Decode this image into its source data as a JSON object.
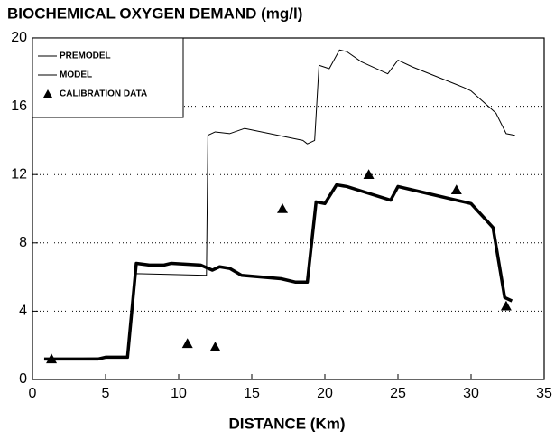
{
  "chart_data": {
    "type": "line",
    "title": "BIOCHEMICAL OXYGEN DEMAND  (mg/l)",
    "x_label": "DISTANCE  (Km)",
    "xlim": [
      0,
      35
    ],
    "xticks": [
      0,
      5,
      10,
      15,
      20,
      25,
      30,
      35
    ],
    "ylim": [
      0,
      20
    ],
    "yticks": [
      0,
      4,
      8,
      12,
      16,
      20
    ],
    "grid": true,
    "legend": "upper left",
    "series": [
      {
        "name": "PREMODEL",
        "color": "#000000",
        "width": 1,
        "mode": "line",
        "x": [
          0.8,
          6.5,
          7.1,
          11.9,
          12.0,
          12.5,
          13.5,
          14.5,
          18.5,
          18.8,
          19.3,
          19.6,
          20.3,
          21.0,
          21.5,
          22.5,
          24.3,
          25.0,
          26.0,
          29.5,
          30.0,
          31.7,
          32.4,
          33.0
        ],
        "values": [
          1.2,
          1.3,
          6.2,
          6.1,
          14.3,
          14.5,
          14.4,
          14.7,
          14.0,
          13.8,
          14.0,
          18.4,
          18.2,
          19.3,
          19.2,
          18.6,
          17.9,
          18.7,
          18.3,
          17.1,
          16.9,
          15.6,
          14.4,
          14.3
        ]
      },
      {
        "name": "MODEL",
        "color": "#000000",
        "width": 3.5,
        "mode": "line",
        "x": [
          0.8,
          4.5,
          5.0,
          6.5,
          7.1,
          8.0,
          9.0,
          9.5,
          11.5,
          12.3,
          12.8,
          13.5,
          14.3,
          17.0,
          18.0,
          18.8,
          19.4,
          20.0,
          20.8,
          21.5,
          23.0,
          24.5,
          25.0,
          27.0,
          28.5,
          29.5,
          30.0,
          31.5,
          32.3,
          32.8
        ],
        "values": [
          1.2,
          1.2,
          1.3,
          1.3,
          6.8,
          6.7,
          6.7,
          6.8,
          6.7,
          6.4,
          6.6,
          6.5,
          6.1,
          5.9,
          5.7,
          5.7,
          10.4,
          10.3,
          11.4,
          11.3,
          10.9,
          10.5,
          11.3,
          10.9,
          10.6,
          10.4,
          10.3,
          8.9,
          4.8,
          4.6
        ]
      },
      {
        "name": "CALIBRATION DATA",
        "color": "#000000",
        "mode": "markers",
        "x": [
          1.3,
          10.6,
          12.5,
          17.1,
          23.0,
          29.0,
          32.4
        ],
        "values": [
          1.2,
          2.1,
          1.9,
          10.0,
          12.0,
          11.1,
          4.3
        ]
      }
    ]
  }
}
